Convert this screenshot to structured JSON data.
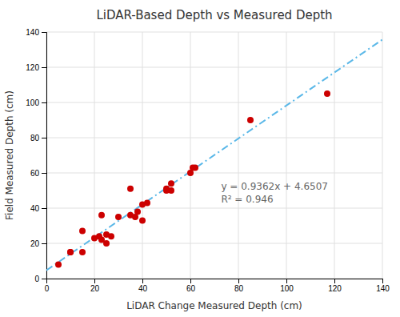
{
  "chart_data": {
    "type": "scatter",
    "title": "LiDAR-Based Depth vs Measured Depth",
    "x_label": "LiDAR Change Measured Depth (cm)",
    "y_label": "Field Measured Depth (cm)",
    "xlim": [
      0,
      140
    ],
    "ylim": [
      0,
      140
    ],
    "xticks": [
      0,
      20,
      40,
      60,
      80,
      100,
      120,
      140
    ],
    "yticks": [
      0,
      20,
      40,
      60,
      80,
      100,
      120,
      140
    ],
    "grid": true,
    "series": [
      {
        "type": "scatter",
        "color": "#cc0000",
        "marker": "circle",
        "x": [
          5,
          10,
          10,
          15,
          15,
          20,
          22,
          23,
          23,
          25,
          25,
          27,
          30,
          35,
          35,
          37,
          38,
          40,
          40,
          42,
          50,
          50,
          52,
          52,
          60,
          61,
          62,
          85,
          117
        ],
        "values": [
          8,
          15,
          15,
          15,
          27,
          23,
          24,
          22,
          36,
          20,
          25,
          24,
          35,
          36,
          51,
          35,
          38,
          42,
          33,
          43,
          51,
          50,
          54,
          50,
          60,
          63,
          63,
          90,
          105
        ]
      },
      {
        "type": "line",
        "color": "#5bb8e8",
        "line_style": "dashdot",
        "x": [
          0,
          140
        ],
        "values": [
          4.6507,
          135.7187
        ]
      }
    ],
    "annotations": [
      "y = 0.9362x + 4.6507",
      "R² = 0.946"
    ]
  }
}
